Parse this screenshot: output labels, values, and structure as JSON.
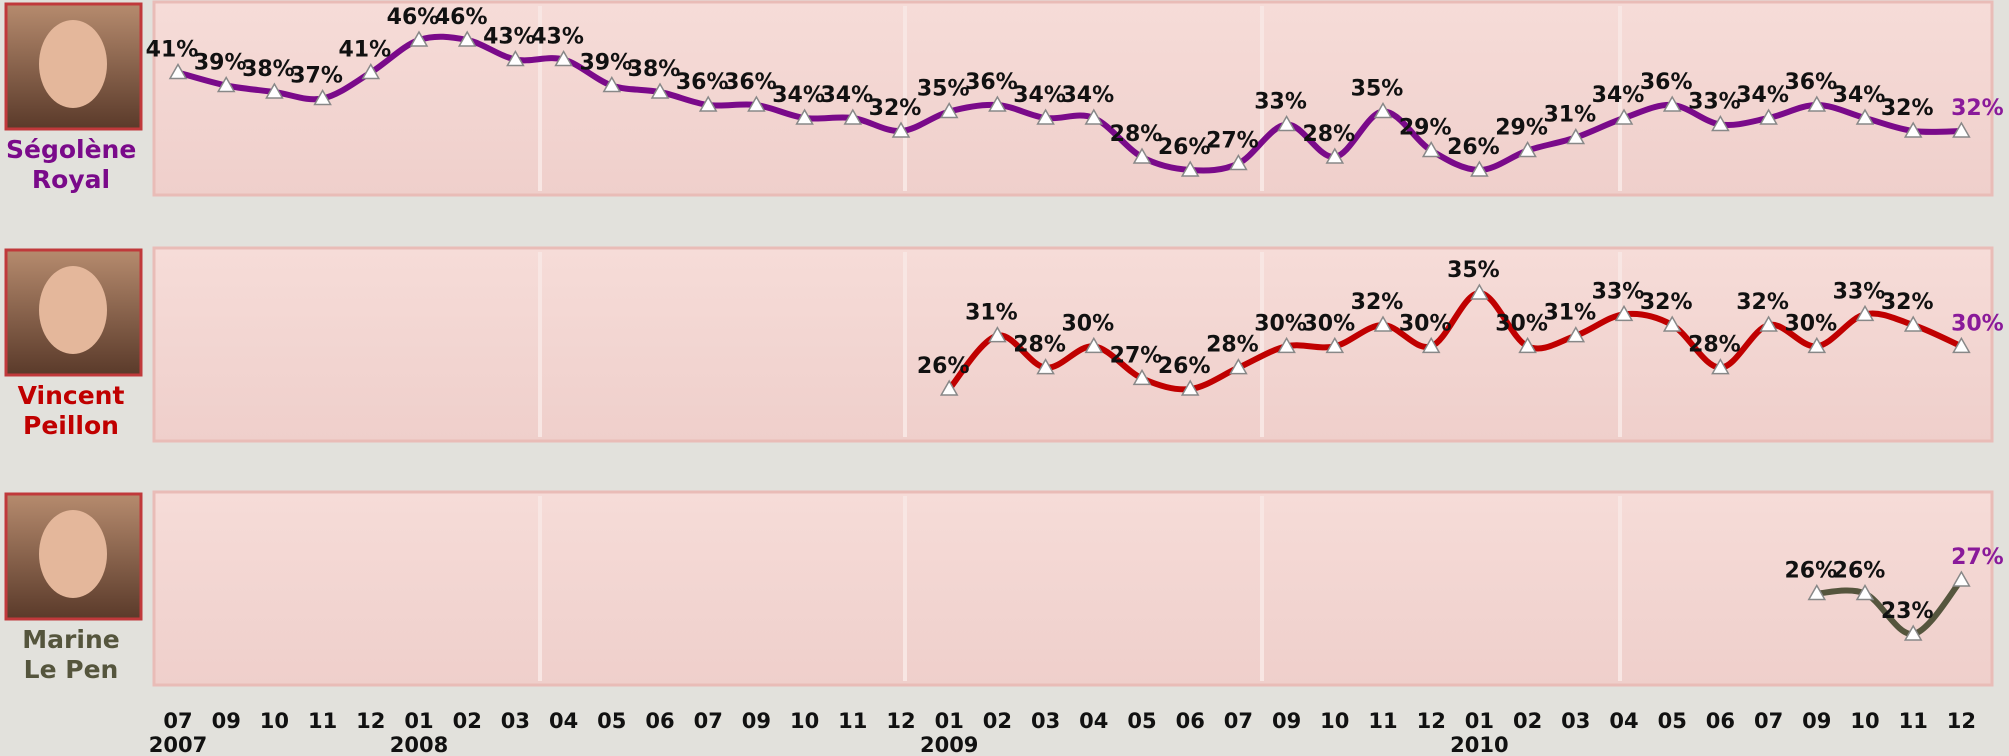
{
  "chart_data": {
    "type": "line",
    "categories": [
      "07",
      "09",
      "10",
      "11",
      "12",
      "01",
      "02",
      "03",
      "04",
      "05",
      "06",
      "07",
      "09",
      "10",
      "11",
      "12",
      "01",
      "02",
      "03",
      "04",
      "05",
      "06",
      "07",
      "09",
      "10",
      "11",
      "12",
      "01",
      "02",
      "03",
      "04",
      "05",
      "06",
      "07",
      "09",
      "10",
      "11",
      "12"
    ],
    "years": [
      "2007",
      null,
      null,
      null,
      null,
      "2008",
      null,
      null,
      null,
      null,
      null,
      null,
      null,
      null,
      null,
      null,
      "2009",
      null,
      null,
      null,
      null,
      null,
      null,
      null,
      null,
      null,
      null,
      "2010",
      null,
      null,
      null,
      null,
      null,
      null,
      null,
      null,
      null,
      null
    ],
    "series": [
      {
        "name": "Ségolène Royal",
        "color": "#7a0a8a",
        "values": [
          41,
          39,
          38,
          37,
          41,
          46,
          46,
          43,
          43,
          39,
          38,
          36,
          36,
          34,
          34,
          32,
          35,
          36,
          34,
          34,
          28,
          26,
          27,
          33,
          28,
          35,
          29,
          26,
          29,
          31,
          34,
          36,
          33,
          34,
          36,
          34,
          32,
          32
        ],
        "value_labels": [
          "41%",
          "39%",
          "38%",
          "37%",
          "41%",
          "46%",
          "46%",
          "43%",
          "43%",
          "39%",
          "38%",
          "36%",
          "36%",
          "34%",
          "34%",
          "32%",
          "35%",
          "36%",
          "34%",
          "34%",
          "28%",
          "26%",
          "27%",
          "33%",
          "28%",
          "35%",
          "29%",
          "26%",
          "29%",
          "31%",
          "34%",
          "36%",
          "33%",
          "34%",
          "36%",
          "34%",
          "32%",
          "32%"
        ]
      },
      {
        "name": "Vincent Peillon",
        "color": "#c00000",
        "values": [
          null,
          null,
          null,
          null,
          null,
          null,
          null,
          null,
          null,
          null,
          null,
          null,
          null,
          null,
          null,
          null,
          26,
          31,
          28,
          30,
          27,
          26,
          28,
          30,
          30,
          32,
          30,
          35,
          30,
          31,
          33,
          32,
          28,
          32,
          30,
          33,
          32,
          30
        ],
        "value_labels": [
          null,
          null,
          null,
          null,
          null,
          null,
          null,
          null,
          null,
          null,
          null,
          null,
          null,
          null,
          null,
          null,
          "26%",
          "31%",
          "28%",
          "30%",
          "27%",
          "26%",
          "28%",
          "30%",
          "30%",
          "32%",
          "30%",
          "35%",
          "30%",
          "31%",
          "33%",
          "32%",
          "28%",
          "32%",
          "30%",
          "33%",
          "32%",
          "30%"
        ]
      },
      {
        "name": "Marine Le Pen",
        "color": "#55553d",
        "values": [
          null,
          null,
          null,
          null,
          null,
          null,
          null,
          null,
          null,
          null,
          null,
          null,
          null,
          null,
          null,
          null,
          null,
          null,
          null,
          null,
          null,
          null,
          null,
          null,
          null,
          null,
          null,
          null,
          null,
          null,
          null,
          null,
          null,
          null,
          26,
          26,
          23,
          27
        ],
        "value_labels": [
          null,
          null,
          null,
          null,
          null,
          null,
          null,
          null,
          null,
          null,
          null,
          null,
          null,
          null,
          null,
          null,
          null,
          null,
          null,
          null,
          null,
          null,
          null,
          null,
          null,
          null,
          null,
          null,
          null,
          null,
          null,
          null,
          null,
          null,
          "26%",
          "26%",
          "23%",
          "27%"
        ]
      }
    ]
  }
}
